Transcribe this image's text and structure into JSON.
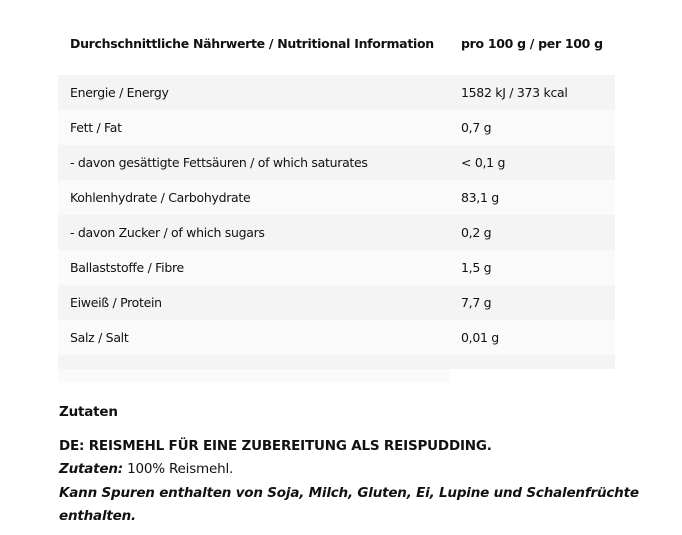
{
  "table": {
    "header": {
      "label": "Durchschnittliche Nährwerte / Nutritional Information",
      "value": "pro 100 g / per 100 g"
    },
    "rows": [
      {
        "label": "Energie / Energy",
        "value": "1582 kJ / 373 kcal"
      },
      {
        "label": "Fett / Fat",
        "value": "0,7 g"
      },
      {
        "label": "- davon gesättigte Fettsäuren / of which saturates",
        "value": "< 0,1 g"
      },
      {
        "label": "Kohlenhydrate / Carbohydrate",
        "value": "83,1 g"
      },
      {
        "label": "- davon Zucker / of which sugars",
        "value": "0,2 g"
      },
      {
        "label": "Ballaststoffe / Fibre",
        "value": "1,5 g"
      },
      {
        "label": "Eiweiß / Protein",
        "value": "7,7 g"
      },
      {
        "label": "Salz / Salt",
        "value": "0,01 g"
      }
    ]
  },
  "ingredients": {
    "heading": "Zutaten",
    "line1": "DE: REISMEHL FÜR EINE ZUBEREITUNG ALS REISPUDDING.",
    "label": "Zutaten:",
    "text": " 100% Reismehl.",
    "allergen1": "Kann Spuren enthalten von Soja, Milch, Gluten, Ei, Lupine und Schalenfrüchte",
    "allergen2": "enthalten."
  }
}
